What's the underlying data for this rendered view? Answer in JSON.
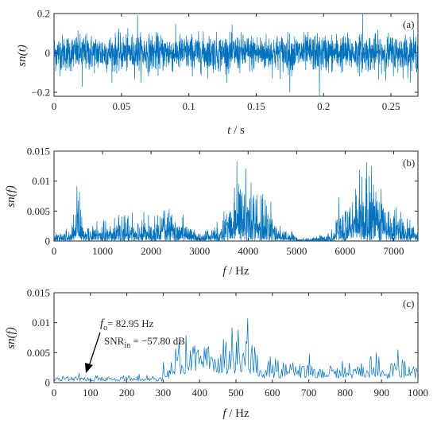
{
  "chart_data": [
    {
      "panel": "(a)",
      "type": "line",
      "ylabel": "sn(t)",
      "xlabel_var": "t",
      "xlabel_unit": "s",
      "xlim": [
        0,
        0.27
      ],
      "ylim": [
        -0.22,
        0.2
      ],
      "xticks": [
        0,
        0.05,
        0.1,
        0.15,
        0.2,
        0.25
      ],
      "xtick_labels": [
        "0",
        "0.05",
        "0.1",
        "0.15",
        "0.2",
        "0.25"
      ],
      "yticks": [
        -0.2,
        0,
        0.2
      ],
      "ytick_labels": [
        "−0.2",
        "0",
        "0.2"
      ],
      "signal": {
        "description": "dense broadband noise time series",
        "x_range": [
          0,
          0.27
        ],
        "typical_envelope": [
          -0.12,
          0.12
        ],
        "extremes": [
          {
            "x": 0.062,
            "y": 0.19
          },
          {
            "x": 0.229,
            "y": 0.2
          },
          {
            "x": 0.197,
            "y": -0.22
          },
          {
            "x": 0.175,
            "y": -0.2
          },
          {
            "x": 0.021,
            "y": -0.17
          }
        ]
      },
      "color": "#0072bd"
    },
    {
      "panel": "(b)",
      "type": "line",
      "ylabel": "sn(f)",
      "xlabel_var": "f",
      "xlabel_unit": "Hz",
      "xlim": [
        0,
        7500
      ],
      "ylim": [
        0,
        0.015
      ],
      "xticks": [
        0,
        1000,
        2000,
        3000,
        4000,
        5000,
        6000,
        7000
      ],
      "xtick_labels": [
        "0",
        "1000",
        "2000",
        "3000",
        "4000",
        "5000",
        "6000",
        "7000"
      ],
      "yticks": [
        0,
        0.005,
        0.01,
        0.015
      ],
      "ytick_labels": [
        "0",
        "0.005",
        "0.01",
        "0.015"
      ],
      "signal": {
        "description": "amplitude spectrum with three resonance bands",
        "bands": [
          {
            "range": [
              400,
              560
            ],
            "peak": {
              "x": 470,
              "y": 0.0091
            }
          },
          {
            "range": [
              3550,
              4450
            ],
            "peak": {
              "x": 3770,
              "y": 0.0133
            }
          },
          {
            "range": [
              5850,
              7100
            ],
            "peak": {
              "x": 6440,
              "y": 0.0131
            }
          }
        ],
        "baseline": 0.0012
      },
      "color": "#0072bd"
    },
    {
      "panel": "(c)",
      "type": "line",
      "ylabel": "sn(f)",
      "xlabel_var": "f",
      "xlabel_unit": "Hz",
      "xlim": [
        0,
        1000
      ],
      "ylim": [
        0,
        0.015
      ],
      "xticks": [
        0,
        100,
        200,
        300,
        400,
        500,
        600,
        700,
        800,
        900,
        1000
      ],
      "xtick_labels": [
        "0",
        "100",
        "200",
        "300",
        "400",
        "500",
        "600",
        "700",
        "800",
        "900",
        "1000"
      ],
      "yticks": [
        0,
        0.005,
        0.01,
        0.015
      ],
      "ytick_labels": [
        "0",
        "0.005",
        "0.01",
        "0.015"
      ],
      "signal": {
        "description": "zoomed low-frequency amplitude spectrum",
        "peaks": [
          {
            "x": 395,
            "y": 0.0055
          },
          {
            "x": 470,
            "y": 0.0048
          },
          {
            "x": 490,
            "y": 0.0092
          },
          {
            "x": 505,
            "y": 0.0088
          },
          {
            "x": 760,
            "y": 0.0028
          }
        ],
        "baseline": 0.0006
      },
      "annotation": {
        "line1_var": "f",
        "line1_sub": "o",
        "line1_value": "= 82.95 Hz",
        "line2_text": "SNR",
        "line2_sub": "in",
        "line2_value": " = −57.80 dB",
        "arrow_target": {
          "x": 82.95,
          "y": 0.0005
        }
      },
      "color": "#0072bd"
    }
  ]
}
